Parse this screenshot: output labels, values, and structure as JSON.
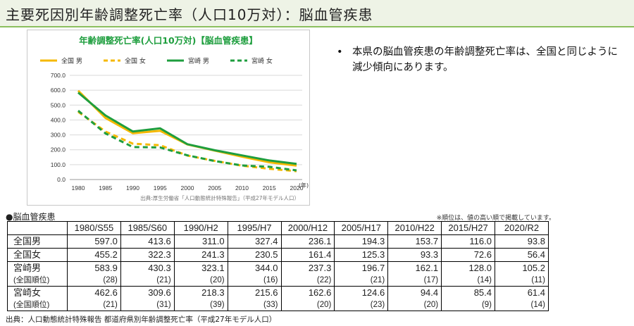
{
  "page": {
    "title": "主要死因別年齢調整死亡率（人口10万対）：脳血管疾患",
    "bullet": "本県の脳血管疾患の年齢調整死亡率は、全国と同じように減少傾向にあります。"
  },
  "chart_data": {
    "type": "line",
    "title": "年齢調整死亡率(人口10万対)【脳血管疾患】",
    "x": [
      "1980",
      "1985",
      "1990",
      "1995",
      "2000",
      "2005",
      "2010",
      "2015",
      "2020"
    ],
    "x_unit": "(年)",
    "ylim": [
      0,
      700
    ],
    "yticks": [
      "0.0",
      "100.0",
      "200.0",
      "300.0",
      "400.0",
      "500.0",
      "600.0",
      "700.0"
    ],
    "grid": true,
    "legend_position": "top",
    "source": "出典:厚生労働省「人口動態統計特殊報告」（平成27年モデル人口）",
    "series": [
      {
        "name": "全国 男",
        "color": "#f5b800",
        "dash": false,
        "values": [
          597.0,
          413.6,
          311.0,
          327.4,
          236.1,
          194.3,
          153.7,
          116.0,
          93.8
        ]
      },
      {
        "name": "全国 女",
        "color": "#f5b800",
        "dash": true,
        "values": [
          455.2,
          322.3,
          241.3,
          230.5,
          161.4,
          125.3,
          93.3,
          72.6,
          56.4
        ]
      },
      {
        "name": "宮崎 男",
        "color": "#1e9e3e",
        "dash": false,
        "values": [
          583.9,
          430.3,
          323.1,
          344.0,
          237.3,
          196.7,
          162.1,
          128.0,
          105.2
        ]
      },
      {
        "name": "宮崎 女",
        "color": "#1e9e3e",
        "dash": true,
        "values": [
          462.6,
          309.6,
          218.3,
          215.6,
          162.6,
          124.6,
          94.4,
          85.4,
          61.4
        ]
      }
    ]
  },
  "table": {
    "label": "●脳血管疾患",
    "note": "※順位は、値の高い順で掲載しています。",
    "columns": [
      "1980/S55",
      "1985/S60",
      "1990/H2",
      "1995/H7",
      "2000/H12",
      "2005/H17",
      "2010/H22",
      "2015/H27",
      "2020/R2"
    ],
    "rows": [
      {
        "label": "全国男",
        "values": [
          "597.0",
          "413.6",
          "311.0",
          "327.4",
          "236.1",
          "194.3",
          "153.7",
          "116.0",
          "93.8"
        ]
      },
      {
        "label": "全国女",
        "values": [
          "455.2",
          "322.3",
          "241.3",
          "230.5",
          "161.4",
          "125.3",
          "93.3",
          "72.6",
          "56.4"
        ]
      },
      {
        "label": "宮崎男",
        "values": [
          "583.9",
          "430.3",
          "323.1",
          "344.0",
          "237.3",
          "196.7",
          "162.1",
          "128.0",
          "105.2"
        ],
        "rank_label": "(全国順位)",
        "ranks": [
          "(28)",
          "(21)",
          "(20)",
          "(16)",
          "(22)",
          "(21)",
          "(17)",
          "(14)",
          "(11)"
        ]
      },
      {
        "label": "宮崎女",
        "values": [
          "462.6",
          "309.6",
          "218.3",
          "215.6",
          "162.6",
          "124.6",
          "94.4",
          "85.4",
          "61.4"
        ],
        "rank_label": "(全国順位)",
        "ranks": [
          "(21)",
          "(31)",
          "(39)",
          "(33)",
          "(20)",
          "(23)",
          "(20)",
          "(9)",
          "(14)"
        ]
      }
    ],
    "source": "出典：人口動態統計特殊報告 都道府県別年齢調整死亡率（平成27年モデル人口）"
  }
}
